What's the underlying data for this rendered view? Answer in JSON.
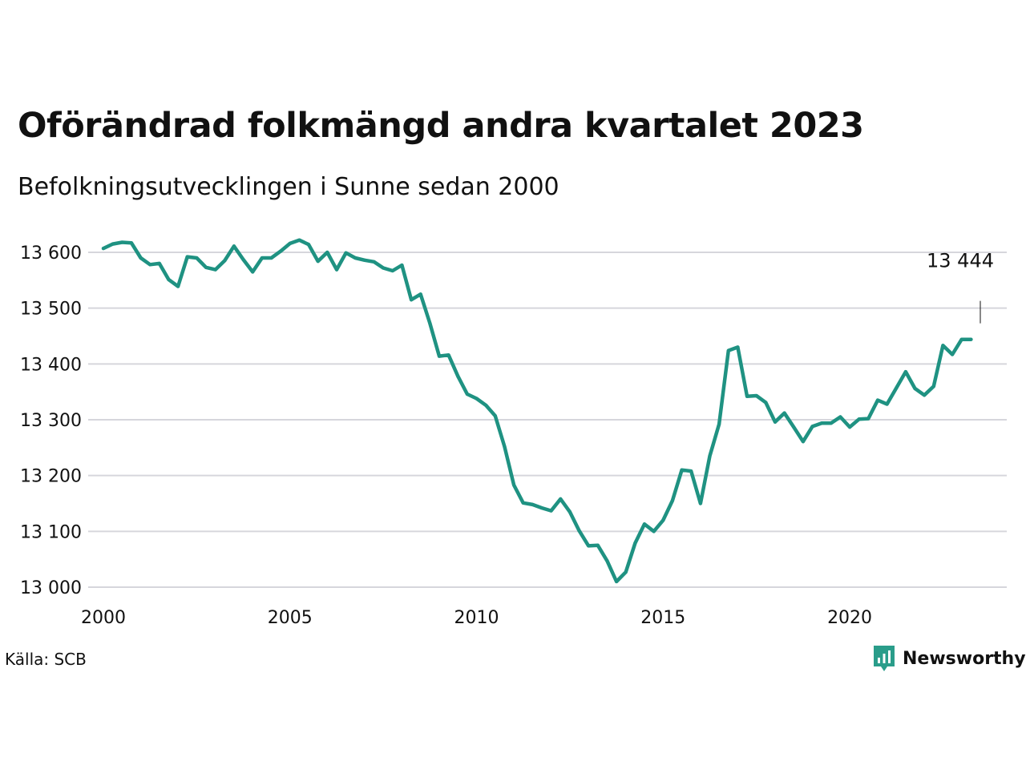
{
  "title": "Oförändrad folkmängd andra kvartalet 2023",
  "subtitle": "Befolkningsutvecklingen i Sunne sedan 2000",
  "source": "Källa: SCB",
  "brand": {
    "name": "Newsworthy",
    "color": "#2a9d8a",
    "icon": "newsworthy-chart-icon"
  },
  "colors": {
    "line": "#1f9282",
    "grid": "#d6d6dc"
  },
  "chart_data": {
    "type": "line",
    "title": "Oförändrad folkmängd andra kvartalet 2023",
    "subtitle": "Befolkningsutvecklingen i Sunne sedan 2000",
    "xlabel": "",
    "ylabel": "",
    "xlim": [
      2000,
      2024.3
    ],
    "ylim": [
      13000,
      13600
    ],
    "x_ticks": [
      2000,
      2005,
      2010,
      2015,
      2020
    ],
    "y_ticks": [
      {
        "value": 13000,
        "label": "13 000"
      },
      {
        "value": 13100,
        "label": "13 100"
      },
      {
        "value": 13200,
        "label": "13 200"
      },
      {
        "value": 13300,
        "label": "13 300"
      },
      {
        "value": 13400,
        "label": "13 400"
      },
      {
        "value": 13500,
        "label": "13 500"
      },
      {
        "value": 13600,
        "label": "13 600"
      }
    ],
    "grid": "horizontal",
    "annotation": {
      "x": 2023.5,
      "value": 13444,
      "label": "13 444"
    },
    "series": [
      {
        "x_start": 2000.0,
        "x_step": 0.25,
        "values": [
          13607,
          13615,
          13618,
          13617,
          13590,
          13578,
          13580,
          13551,
          13539,
          13592,
          13590,
          13573,
          13569,
          13585,
          13611,
          13587,
          13565,
          13590,
          13590,
          13602,
          13616,
          13622,
          13614,
          13584,
          13600,
          13569,
          13599,
          13590,
          13586,
          13583,
          13572,
          13567,
          13577,
          13515,
          13525,
          13473,
          13414,
          13416,
          13378,
          13346,
          13338,
          13326,
          13307,
          13252,
          13183,
          13151,
          13148,
          13142,
          13137,
          13158,
          13135,
          13101,
          13074,
          13075,
          13047,
          13010,
          13027,
          13079,
          13113,
          13100,
          13120,
          13155,
          13210,
          13208,
          13150,
          13235,
          13292,
          13424,
          13430,
          13342,
          13343,
          13331,
          13296,
          13312,
          13287,
          13261,
          13288,
          13294,
          13294,
          13305,
          13287,
          13301,
          13302,
          13335,
          13328,
          13357,
          13386,
          13356,
          13344,
          13360,
          13433,
          13417,
          13444,
          13444
        ]
      }
    ]
  }
}
